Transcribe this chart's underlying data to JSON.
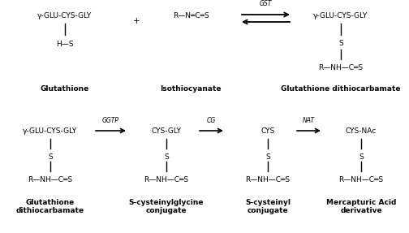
{
  "background_color": "#ffffff",
  "fig_width": 5.04,
  "fig_height": 2.87,
  "dpi": 100,
  "top_row": {
    "glutathione_text": "γ-GLU-CYS-GLY",
    "glutathione_hs": "H—S",
    "glutathione_label": "Glutathione",
    "plus": "+",
    "isothiocyanate_text": "R—N═C═S",
    "isothiocyanate_label": "Isothiocyanate",
    "gst_label": "GST",
    "product_top": "γ-GLU-CYS-GLY",
    "product_s": "S",
    "product_struct": "R—NH—C═S",
    "product_label": "Glutathione dithiocarbamate"
  },
  "bottom_row": {
    "comp1_top": "γ-GLU-CYS-GLY",
    "comp1_s": "S",
    "comp1_struct": "R—NH—C═S",
    "comp1_label": "Glutathione\ndithiocarbamate",
    "arrow1_label": "GGTP",
    "comp2_top": "CYS-GLY",
    "comp2_s": "S",
    "comp2_struct": "R—NH—C═S",
    "comp2_label": "S-cysteinylglycine\nconjugate",
    "arrow2_label": "CG",
    "comp3_top": "CYS",
    "comp3_s": "S",
    "comp3_struct": "R—NH—C═S",
    "comp3_label": "S-cysteinyl\nconjugate",
    "arrow3_label": "NAT",
    "comp4_top": "CYS-NAc",
    "comp4_s": "S",
    "comp4_struct": "R—NH—C═S",
    "comp4_label": "Mercapturic Acid\nderivative"
  },
  "fs_main": 6.5,
  "fs_label": 6.5,
  "fs_enzyme": 5.5
}
